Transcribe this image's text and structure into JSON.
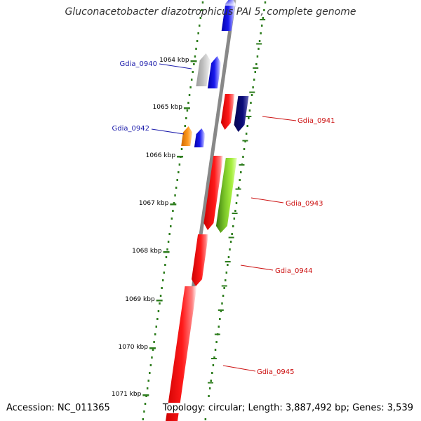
{
  "title": "Gluconacetobacter diazotrophicus PAI 5, complete genome",
  "accession_text": "Accession: NC_011365",
  "summary_text": "Topology: circular; Length: 3,887,492 bp; Genes: 3,539",
  "colors": {
    "backbone": "#888888",
    "tick": "#2e7d1e",
    "label_left": "#1a1aaa",
    "label_right": "#cc1111"
  },
  "kbp_labels": [
    "1064 kbp",
    "1065 kbp",
    "1066 kbp",
    "1067 kbp",
    "1068 kbp",
    "1069 kbp",
    "1070 kbp",
    "1071 kbp"
  ],
  "genes": [
    {
      "label": "",
      "color": "#1a1aee",
      "strand": "plus"
    },
    {
      "label": "",
      "color": "#b8b8b8",
      "strand": "plus"
    },
    {
      "label": "Gdia_0940",
      "color": "#1a1aee",
      "strand": "plus"
    },
    {
      "label": "Gdia_0941",
      "color": "#ee1111",
      "strand": "minus"
    },
    {
      "label": "",
      "color": "#0b0b7a",
      "strand": "minus"
    },
    {
      "label": "",
      "color": "#f08a10",
      "strand": "plus"
    },
    {
      "label": "Gdia_0942",
      "color": "#1a1aee",
      "strand": "plus"
    },
    {
      "label": "",
      "color": "#ee1111",
      "strand": "minus"
    },
    {
      "label": "Gdia_0943",
      "color": "#90e030",
      "strand": "minus"
    },
    {
      "label": "Gdia_0944",
      "color": "#ee1111",
      "strand": "minus"
    },
    {
      "label": "Gdia_0945",
      "color": "#ee1111",
      "strand": "minus"
    }
  ]
}
